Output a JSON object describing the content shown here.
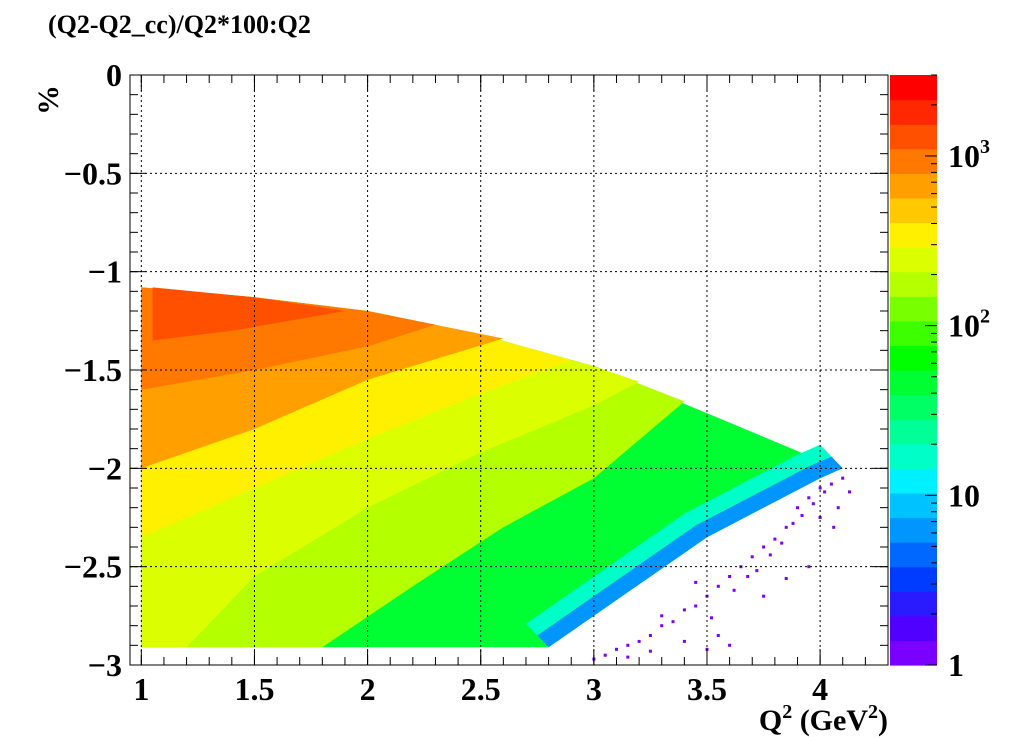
{
  "chart_data": {
    "type": "heatmap",
    "title": "(Q2-Q2_cc)/Q2*100:Q2",
    "xlabel_base": "Q",
    "xlabel_sup": "2",
    "xlabel_units_pre": " (GeV",
    "xlabel_units_sup": "2",
    "xlabel_units_post": ")",
    "ylabel": "%",
    "xlim": [
      0.95,
      4.3
    ],
    "ylim": [
      -3,
      0
    ],
    "x_ticks": [
      {
        "v": 1,
        "label": "1"
      },
      {
        "v": 1.5,
        "label": "1.5"
      },
      {
        "v": 2,
        "label": "2"
      },
      {
        "v": 2.5,
        "label": "2.5"
      },
      {
        "v": 3,
        "label": "3"
      },
      {
        "v": 3.5,
        "label": "3.5"
      },
      {
        "v": 4,
        "label": "4"
      }
    ],
    "y_ticks": [
      {
        "v": 0,
        "label": "0"
      },
      {
        "v": -0.5,
        "label": "−0.5"
      },
      {
        "v": -1,
        "label": "−1"
      },
      {
        "v": -1.5,
        "label": "−1.5"
      },
      {
        "v": -2,
        "label": "−2"
      },
      {
        "v": -2.5,
        "label": "−2.5"
      },
      {
        "v": -3,
        "label": "−3"
      }
    ],
    "grid": true,
    "z_scale": "log",
    "z_range": [
      1,
      3000
    ],
    "colorbar_labels": [
      {
        "v": 1,
        "base": "1",
        "sup": ""
      },
      {
        "v": 10,
        "base": "10",
        "sup": ""
      },
      {
        "v": 100,
        "base": "10",
        "sup": "2"
      },
      {
        "v": 1000,
        "base": "10",
        "sup": "3"
      }
    ],
    "palette": [
      "#7a00ff",
      "#4f00ff",
      "#2a1bff",
      "#003cff",
      "#0067ff",
      "#0095ff",
      "#00c2ff",
      "#00f0ff",
      "#00ffc8",
      "#00ff96",
      "#00ff64",
      "#00ff32",
      "#00ff00",
      "#3cff00",
      "#78ff00",
      "#b4ff00",
      "#dcff00",
      "#fff000",
      "#ffc800",
      "#ffa000",
      "#ff7800",
      "#ff5000",
      "#ff2800",
      "#ff0000"
    ],
    "region": {
      "upper_edge": [
        [
          1.0,
          -1.08
        ],
        [
          1.5,
          -1.13
        ],
        [
          2.0,
          -1.2
        ],
        [
          2.5,
          -1.32
        ],
        [
          3.0,
          -1.48
        ],
        [
          3.5,
          -1.72
        ],
        [
          4.0,
          -1.96
        ],
        [
          4.1,
          -2.0
        ]
      ],
      "lower_edge": [
        [
          1.0,
          -2.91
        ],
        [
          2.8,
          -2.91
        ],
        [
          3.0,
          -2.75
        ],
        [
          3.5,
          -2.35
        ],
        [
          4.0,
          -2.05
        ],
        [
          4.1,
          -2.0
        ]
      ],
      "contours": [
        {
          "z": 1500,
          "upper": [
            [
              1.05,
              -1.08
            ],
            [
              1.5,
              -1.13
            ],
            [
              1.9,
              -1.2
            ]
          ],
          "lower": [
            [
              1.05,
              -1.35
            ],
            [
              1.4,
              -1.3
            ],
            [
              1.9,
              -1.2
            ]
          ]
        },
        {
          "z": 900,
          "upper": [
            [
              1.0,
              -1.08
            ],
            [
              1.5,
              -1.13
            ],
            [
              2.0,
              -1.2
            ],
            [
              2.3,
              -1.27
            ]
          ],
          "lower": [
            [
              1.0,
              -1.6
            ],
            [
              1.5,
              -1.5
            ],
            [
              2.0,
              -1.38
            ],
            [
              2.3,
              -1.27
            ]
          ]
        },
        {
          "z": 600,
          "upper": [
            [
              1.0,
              -1.08
            ],
            [
              1.5,
              -1.13
            ],
            [
              2.0,
              -1.2
            ],
            [
              2.6,
              -1.34
            ]
          ],
          "lower": [
            [
              1.0,
              -2.0
            ],
            [
              1.5,
              -1.8
            ],
            [
              2.0,
              -1.55
            ],
            [
              2.6,
              -1.34
            ]
          ]
        },
        {
          "z": 380,
          "upper": [
            [
              1.0,
              -1.08
            ],
            [
              1.5,
              -1.13
            ],
            [
              2.0,
              -1.2
            ],
            [
              2.5,
              -1.32
            ],
            [
              2.9,
              -1.45
            ]
          ],
          "lower": [
            [
              1.0,
              -2.35
            ],
            [
              1.5,
              -2.1
            ],
            [
              2.0,
              -1.85
            ],
            [
              2.5,
              -1.62
            ],
            [
              2.9,
              -1.45
            ]
          ]
        },
        {
          "z": 250,
          "upper": [
            [
              1.0,
              -1.08
            ],
            [
              1.5,
              -1.13
            ],
            [
              2.0,
              -1.2
            ],
            [
              2.5,
              -1.32
            ],
            [
              3.0,
              -1.48
            ],
            [
              3.2,
              -1.56
            ]
          ],
          "lower": [
            [
              1.0,
              -2.91
            ],
            [
              1.2,
              -2.91
            ],
            [
              1.5,
              -2.55
            ],
            [
              2.0,
              -2.2
            ],
            [
              2.5,
              -1.92
            ],
            [
              3.0,
              -1.68
            ],
            [
              3.2,
              -1.56
            ]
          ]
        },
        {
          "z": 150,
          "upper": [
            [
              1.0,
              -1.08
            ],
            [
              1.5,
              -1.13
            ],
            [
              2.0,
              -1.2
            ],
            [
              2.5,
              -1.32
            ],
            [
              3.0,
              -1.48
            ],
            [
              3.4,
              -1.66
            ]
          ],
          "lower": [
            [
              1.0,
              -2.91
            ],
            [
              1.8,
              -2.91
            ],
            [
              2.2,
              -2.6
            ],
            [
              2.6,
              -2.3
            ],
            [
              3.0,
              -2.05
            ],
            [
              3.4,
              -1.66
            ]
          ]
        }
      ],
      "noise_points": [
        [
          4.0,
          -2.1
        ],
        [
          4.02,
          -2.12
        ],
        [
          3.95,
          -2.15
        ],
        [
          4.05,
          -2.08
        ],
        [
          4.08,
          -2.2
        ],
        [
          3.9,
          -2.2
        ],
        [
          3.85,
          -2.3
        ],
        [
          3.8,
          -2.36
        ],
        [
          4.0,
          -2.25
        ],
        [
          3.75,
          -2.4
        ],
        [
          3.7,
          -2.45
        ],
        [
          3.65,
          -2.5
        ],
        [
          3.6,
          -2.55
        ],
        [
          3.55,
          -2.6
        ],
        [
          3.5,
          -2.65
        ],
        [
          3.45,
          -2.7
        ],
        [
          3.4,
          -2.72
        ],
        [
          3.35,
          -2.78
        ],
        [
          3.3,
          -2.8
        ],
        [
          3.25,
          -2.85
        ],
        [
          3.2,
          -2.88
        ],
        [
          3.15,
          -2.9
        ],
        [
          3.1,
          -2.92
        ],
        [
          3.05,
          -2.95
        ],
        [
          3.0,
          -2.97
        ],
        [
          3.45,
          -2.58
        ],
        [
          3.3,
          -2.75
        ],
        [
          3.52,
          -2.76
        ],
        [
          3.62,
          -2.62
        ],
        [
          3.68,
          -2.55
        ],
        [
          3.72,
          -2.52
        ],
        [
          3.78,
          -2.44
        ],
        [
          3.83,
          -2.38
        ],
        [
          3.88,
          -2.28
        ],
        [
          3.92,
          -2.24
        ],
        [
          3.97,
          -2.18
        ],
        [
          4.1,
          -2.05
        ],
        [
          4.13,
          -2.12
        ],
        [
          4.06,
          -2.3
        ],
        [
          3.55,
          -2.85
        ],
        [
          3.6,
          -2.9
        ],
        [
          3.75,
          -2.65
        ],
        [
          3.4,
          -2.88
        ],
        [
          3.25,
          -2.93
        ],
        [
          3.15,
          -2.96
        ],
        [
          3.95,
          -2.5
        ],
        [
          3.85,
          -2.56
        ],
        [
          3.5,
          -2.92
        ]
      ]
    }
  }
}
